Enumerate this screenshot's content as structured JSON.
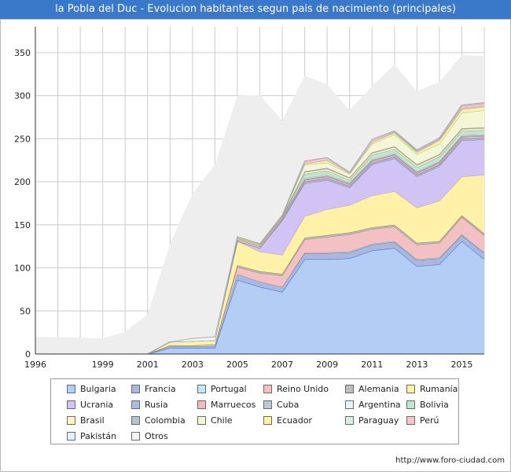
{
  "header": {
    "title": "la Pobla del Duc - Evolucion habitantes segun pais de nacimiento (principales)"
  },
  "footer": {
    "source": "http://www.foro-ciudad.com"
  },
  "chart_data": {
    "type": "area",
    "stacked": true,
    "x": [
      1996,
      1998,
      1999,
      2000,
      2001,
      2002,
      2003,
      2004,
      2005,
      2006,
      2007,
      2008,
      2009,
      2010,
      2011,
      2012,
      2013,
      2014,
      2015,
      2016
    ],
    "x_tick_labels": [
      "1996",
      "1999",
      "2001",
      "2003",
      "2005",
      "2007",
      "2009",
      "2011",
      "2013",
      "2015"
    ],
    "x_tick_values": [
      1996,
      1999,
      2001,
      2003,
      2005,
      2007,
      2009,
      2011,
      2013,
      2015
    ],
    "y_ticks": [
      0,
      50,
      100,
      150,
      200,
      250,
      300,
      350
    ],
    "xlim": [
      1996,
      2016
    ],
    "ylim": [
      0,
      380
    ],
    "grid": true,
    "legend_position": "bottom",
    "colors": {
      "total_fill": "#eeeeee",
      "grid": "#cccccc",
      "axis": "#333333"
    },
    "series": [
      {
        "name": "Bulgaria",
        "color": "#b3cdf5",
        "values": [
          0,
          0,
          0,
          0,
          0,
          7,
          7,
          7,
          86,
          78,
          72,
          110,
          110,
          111,
          120,
          123,
          102,
          104,
          131,
          110
        ]
      },
      {
        "name": "Francia",
        "color": "#aab8e0",
        "values": [
          0,
          0,
          0,
          0,
          0,
          2,
          2,
          2,
          7,
          6,
          6,
          7,
          7,
          7,
          7,
          7,
          7,
          7,
          7,
          7
        ]
      },
      {
        "name": "Portugal",
        "color": "#c6e6fa",
        "values": [
          0,
          0,
          0,
          0,
          0,
          0,
          0,
          0,
          0,
          0,
          0,
          1,
          1,
          1,
          1,
          1,
          1,
          1,
          1,
          1
        ]
      },
      {
        "name": "Reino Unido",
        "color": "#f3c1c4",
        "values": [
          0,
          0,
          0,
          0,
          0,
          1,
          1,
          2,
          8,
          10,
          13,
          15,
          18,
          20,
          17,
          17,
          17,
          17,
          20,
          20
        ]
      },
      {
        "name": "Alemania",
        "color": "#bdbdbd",
        "values": [
          0,
          0,
          0,
          0,
          0,
          0,
          0,
          0,
          2,
          2,
          2,
          2,
          2,
          2,
          2,
          2,
          2,
          2,
          2,
          2
        ]
      },
      {
        "name": "Rumanía",
        "color": "#fff2a8",
        "values": [
          0,
          0,
          0,
          0,
          0,
          4,
          5,
          5,
          28,
          23,
          22,
          25,
          30,
          32,
          37,
          39,
          41,
          47,
          45,
          68
        ]
      },
      {
        "name": "Ucrania",
        "color": "#d2c3f5",
        "values": [
          0,
          0,
          0,
          0,
          0,
          0,
          0,
          0,
          0,
          4,
          40,
          38,
          34,
          20,
          36,
          38,
          36,
          40,
          42,
          41
        ]
      },
      {
        "name": "Rusia",
        "color": "#aabde0",
        "values": [
          0,
          0,
          0,
          0,
          0,
          0,
          0,
          0,
          0,
          0,
          1,
          2,
          2,
          2,
          2,
          2,
          2,
          2,
          2,
          2
        ]
      },
      {
        "name": "Marruecos",
        "color": "#f2bcbc",
        "values": [
          0,
          0,
          0,
          0,
          0,
          0,
          0,
          0,
          2,
          2,
          2,
          2,
          2,
          2,
          2,
          2,
          2,
          2,
          2,
          2
        ]
      },
      {
        "name": "Cuba",
        "color": "#bcc8da",
        "values": [
          0,
          0,
          0,
          0,
          0,
          0,
          0,
          0,
          0,
          0,
          0,
          1,
          1,
          1,
          1,
          1,
          1,
          1,
          1,
          1
        ]
      },
      {
        "name": "Argentina",
        "color": "#e8f2fb",
        "values": [
          0,
          0,
          0,
          0,
          0,
          0,
          0,
          0,
          0,
          0,
          0,
          1,
          1,
          1,
          1,
          1,
          1,
          1,
          1,
          1
        ]
      },
      {
        "name": "Bolivia",
        "color": "#c3e3d3",
        "values": [
          0,
          0,
          0,
          0,
          0,
          0,
          0,
          0,
          0,
          0,
          0,
          5,
          5,
          3,
          5,
          5,
          5,
          5,
          5,
          5
        ]
      },
      {
        "name": "Brasil",
        "color": "#fff5c8",
        "values": [
          0,
          0,
          0,
          0,
          0,
          0,
          0,
          0,
          1,
          1,
          1,
          2,
          2,
          2,
          2,
          2,
          2,
          2,
          2,
          2
        ]
      },
      {
        "name": "Colombia",
        "color": "#b7c2cf",
        "values": [
          0,
          0,
          0,
          0,
          0,
          0,
          0,
          0,
          1,
          1,
          1,
          1,
          1,
          1,
          1,
          1,
          1,
          1,
          1,
          1
        ]
      },
      {
        "name": "Chile",
        "color": "#f3f7d6",
        "values": [
          0,
          0,
          0,
          0,
          0,
          0,
          0,
          0,
          0,
          0,
          0,
          8,
          6,
          4,
          10,
          14,
          12,
          12,
          18,
          20
        ]
      },
      {
        "name": "Ecuador",
        "color": "#fff1a6",
        "values": [
          0,
          0,
          0,
          0,
          0,
          0,
          0,
          0,
          1,
          1,
          1,
          1,
          3,
          1,
          2,
          2,
          2,
          4,
          4,
          4
        ]
      },
      {
        "name": "Paraguay",
        "color": "#d5f0e0",
        "values": [
          0,
          0,
          0,
          0,
          0,
          0,
          0,
          0,
          0,
          0,
          0,
          0,
          0,
          0,
          0,
          1,
          1,
          1,
          1,
          1
        ]
      },
      {
        "name": "Perú",
        "color": "#f6c6cc",
        "values": [
          0,
          0,
          0,
          0,
          0,
          0,
          0,
          0,
          0,
          0,
          0,
          3,
          3,
          1,
          3,
          1,
          1,
          1,
          3,
          3
        ]
      },
      {
        "name": "Pakistán",
        "color": "#e6f0fa",
        "values": [
          0,
          0,
          0,
          0,
          0,
          0,
          0,
          0,
          0,
          0,
          0,
          0,
          0,
          0,
          0,
          0,
          1,
          1,
          1,
          1
        ]
      },
      {
        "name": "Otros",
        "color": "#f4f4f4",
        "values": [
          0,
          0,
          0,
          0,
          0,
          0,
          3,
          4,
          0,
          0,
          0,
          0,
          0,
          0,
          0,
          0,
          0,
          0,
          0,
          0
        ]
      }
    ],
    "total": {
      "values": [
        20,
        19,
        18,
        26,
        46,
        128,
        186,
        220,
        300,
        301,
        271,
        323,
        313,
        283,
        311,
        336,
        305,
        316,
        347,
        346
      ]
    }
  }
}
